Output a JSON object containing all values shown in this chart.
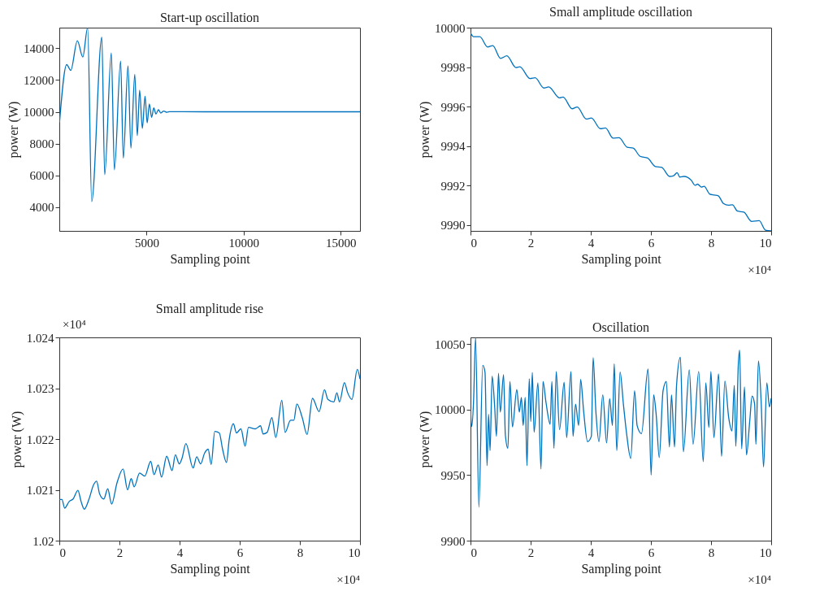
{
  "chart_data": [
    {
      "type": "line",
      "title": "Start-up oscillation",
      "xlabel": "Sampling point",
      "ylabel": "power (W)",
      "xlim": [
        500,
        16000
      ],
      "ylim": [
        2500,
        15300
      ],
      "xticks": [
        5000,
        10000,
        15000
      ],
      "yticks": [
        4000,
        6000,
        8000,
        10000,
        12000,
        14000
      ],
      "marker": "none",
      "line_style": "solid",
      "series": [
        {
          "color": "#0072bd",
          "x": [
            510,
            880,
            1090,
            1430,
            1710,
            1960,
            2170,
            2690,
            2840,
            3180,
            3340,
            3660,
            3800,
            4040,
            4190,
            4390,
            4520,
            4640,
            4780,
            4920,
            5030,
            5140,
            5260,
            5370,
            5480,
            5610,
            5730,
            5880,
            6050,
            6180,
            8000,
            10000,
            12000,
            14000,
            16000
          ],
          "values": [
            9330,
            12970,
            12610,
            14470,
            13450,
            15300,
            4350,
            14700,
            6040,
            13700,
            6350,
            13190,
            7080,
            12900,
            7710,
            12360,
            8500,
            11360,
            8960,
            10980,
            9300,
            10490,
            9650,
            10250,
            9860,
            10130,
            9920,
            10050,
            9970,
            10010,
            10000,
            10000,
            10000,
            10000,
            10000
          ]
        }
      ]
    },
    {
      "type": "line",
      "title": "Small amplitude oscillation",
      "xlabel": "Sampling point",
      "ylabel": "power (W)",
      "xlim": [
        0,
        10
      ],
      "ylim": [
        9989.7,
        10000
      ],
      "xticks": [
        0,
        2,
        4,
        6,
        8,
        10
      ],
      "yticks": [
        9990,
        9992,
        9994,
        9996,
        9998,
        10000
      ],
      "marker": "none",
      "line_style": "solid",
      "annotations": [
        "×10⁴"
      ],
      "series": [
        {
          "color": "#0072bd",
          "x": [
            0,
            0.1,
            0.31,
            0.57,
            0.74,
            1.0,
            1.21,
            1.51,
            1.64,
            1.98,
            2.15,
            2.44,
            2.6,
            2.96,
            3.08,
            3.38,
            3.55,
            3.85,
            4.02,
            4.32,
            4.49,
            4.74,
            4.94,
            5.21,
            5.41,
            5.64,
            5.89,
            6.15,
            6.36,
            6.62,
            6.76,
            6.87,
            6.96,
            7.1,
            7.34,
            7.47,
            7.55,
            7.68,
            7.77,
            7.96,
            8.11,
            8.24,
            8.41,
            8.58,
            8.71,
            8.88,
            9.09,
            9.35,
            9.6,
            9.81,
            10
          ],
          "values": [
            9999.74,
            9999.54,
            9999.54,
            9999.02,
            9999.09,
            9998.44,
            9998.57,
            9997.98,
            9998.02,
            9997.42,
            9997.46,
            9996.94,
            9997.0,
            9996.44,
            9996.48,
            9995.89,
            9995.98,
            9995.37,
            9995.42,
            9994.88,
            9994.92,
            9994.4,
            9994.42,
            9993.94,
            9993.9,
            9993.48,
            9993.39,
            9992.96,
            9992.92,
            9992.46,
            9992.5,
            9992.65,
            9992.43,
            9992.46,
            9992.27,
            9992.01,
            9992.07,
            9991.92,
            9991.96,
            9991.56,
            9991.52,
            9991.48,
            9991.09,
            9991.0,
            9991.02,
            9990.7,
            9990.65,
            9990.18,
            9990.22,
            9989.74,
            9989.7
          ]
        }
      ]
    },
    {
      "type": "line",
      "title": "Small amplitude rise",
      "xlabel": "Sampling point",
      "ylabel": "power (W)",
      "xlim": [
        0,
        10
      ],
      "ylim": [
        1.02,
        1.024
      ],
      "xticks": [
        0,
        2,
        4,
        6,
        8,
        10
      ],
      "yticks": [
        1.02,
        1.021,
        1.022,
        1.023,
        1.024
      ],
      "marker": "none",
      "line_style": "solid",
      "annotations": [
        "×10⁴",
        "×10⁴"
      ],
      "series": [
        {
          "color": "#0072bd",
          "x": [
            0,
            0.088,
            0.177,
            0.327,
            0.459,
            0.618,
            0.724,
            0.83,
            0.989,
            1.14,
            1.24,
            1.34,
            1.48,
            1.61,
            1.74,
            1.92,
            2.12,
            2.27,
            2.39,
            2.49,
            2.67,
            2.84,
            3.04,
            3.15,
            3.29,
            3.4,
            3.57,
            3.75,
            3.86,
            3.99,
            4.08,
            4.21,
            4.45,
            4.57,
            4.7,
            4.83,
            4.95,
            5.05,
            5.17,
            5.32,
            5.43,
            5.56,
            5.65,
            5.79,
            5.89,
            6.04,
            6.18,
            6.29,
            6.52,
            6.69,
            6.78,
            6.91,
            7.07,
            7.2,
            7.4,
            7.51,
            7.69,
            7.8,
            7.9,
            8.08,
            8.24,
            8.42,
            8.64,
            8.82,
            8.93,
            9.13,
            9.23,
            9.32,
            9.48,
            9.59,
            9.73,
            9.91,
            10
          ],
          "values": [
            1.02081,
            1.02081,
            1.02064,
            1.02077,
            1.02082,
            1.02099,
            1.02077,
            1.02062,
            1.02082,
            1.0211,
            1.02117,
            1.02092,
            1.02082,
            1.02102,
            1.02072,
            1.02114,
            1.02141,
            1.021,
            1.02122,
            1.02106,
            1.02133,
            1.02127,
            1.02156,
            1.0213,
            1.02149,
            1.02125,
            1.02166,
            1.02138,
            1.02169,
            1.02151,
            1.02162,
            1.02191,
            1.02143,
            1.02165,
            1.02151,
            1.02172,
            1.0218,
            1.0215,
            1.02215,
            1.02212,
            1.0218,
            1.02154,
            1.02199,
            1.0223,
            1.02212,
            1.0222,
            1.02186,
            1.02223,
            1.0222,
            1.02226,
            1.0221,
            1.02213,
            1.02242,
            1.02203,
            1.02276,
            1.02213,
            1.02237,
            1.02237,
            1.02269,
            1.02242,
            1.02209,
            1.0228,
            1.02254,
            1.02297,
            1.02278,
            1.02273,
            1.02291,
            1.02273,
            1.02311,
            1.02291,
            1.02278,
            1.02337,
            1.02318
          ]
        }
      ]
    },
    {
      "type": "line",
      "title": "Oscillation",
      "xlabel": "Sampling point",
      "ylabel": "power (W)",
      "xlim": [
        0,
        10
      ],
      "ylim": [
        9900,
        10055
      ],
      "xticks": [
        0,
        2,
        4,
        6,
        8,
        10
      ],
      "yticks": [
        9900,
        9950,
        10000,
        10050
      ],
      "marker": "none",
      "line_style": "solid",
      "annotations": [
        "×10⁴"
      ],
      "series": [
        {
          "color": "#0072bd",
          "x": [
            0,
            0.042,
            0.102,
            0.169,
            0.279,
            0.406,
            0.482,
            0.55,
            0.601,
            0.651,
            0.719,
            0.804,
            0.863,
            0.931,
            0.99,
            1.1,
            1.159,
            1.244,
            1.311,
            1.396,
            1.54,
            1.624,
            1.692,
            1.751,
            1.819,
            1.878,
            1.954,
            2.005,
            2.056,
            2.115,
            2.242,
            2.344,
            2.411,
            2.513,
            2.648,
            2.707,
            2.775,
            2.851,
            2.961,
            3.114,
            3.198,
            3.342,
            3.41,
            3.494,
            3.596,
            3.663,
            3.765,
            3.892,
            4.019,
            4.078,
            4.171,
            4.272,
            4.399,
            4.526,
            4.628,
            4.721,
            4.78,
            4.865,
            4.975,
            5.085,
            5.186,
            5.33,
            5.457,
            5.541,
            5.685,
            5.905,
            6.007,
            6.091,
            6.176,
            6.277,
            6.404,
            6.514,
            6.616,
            6.684,
            6.785,
            6.853,
            6.98,
            7.081,
            7.276,
            7.403,
            7.589,
            7.741,
            7.826,
            7.927,
            7.995,
            8.096,
            8.249,
            8.35,
            8.46,
            8.587,
            8.697,
            8.773,
            8.824,
            8.908,
            8.951,
            9.019,
            9.112,
            9.179,
            9.289,
            9.365,
            9.45,
            9.492,
            9.577,
            9.67,
            9.746,
            9.856,
            9.941,
            10
          ],
          "values": [
            10000.4,
            9987.1,
            10006.5,
            10055,
            9925.5,
            10033.7,
            10028.6,
            9957.2,
            9996.3,
            9968.7,
            10025.5,
            10002.0,
            9979.6,
            10027.6,
            9998.0,
            10026.5,
            9980.6,
            9970.4,
            10021.4,
            9986.7,
            10015.3,
            9998.0,
            10009.2,
            9987.8,
            10009.2,
            9957.2,
            10023.5,
            9990.8,
            10028.2,
            9982.7,
            10020.4,
            9954.7,
            10021.4,
            10005.1,
            9988.8,
            10021.4,
            9970.4,
            10029.0,
            9984.7,
            10020.8,
            9978.6,
            10029.0,
            9979.6,
            10004.1,
            9987.8,
            10022.9,
            9998.0,
            9975.5,
            9979.6,
            10039.6,
            9998.0,
            9975.5,
            10011.2,
            9974.5,
            10008.2,
            9987.8,
            10034.9,
            9968.6,
            10028.6,
            10004.1,
            9982.7,
            9962.7,
            10014.3,
            9987.8,
            9981.6,
            10031.0,
            9950.0,
            10011.2,
            9995.9,
            9963.3,
            10014.3,
            10021.4,
            9971.4,
            10011.2,
            9971.4,
            10018.4,
            10039.8,
            9967.8,
            10030.2,
            9973.5,
            10029.0,
            9960.2,
            10020.4,
            9986.3,
            10029.0,
            9978.6,
            10027.1,
            9964.3,
            10021.8,
            9993.9,
            9983.7,
            10018.4,
            9972.0,
            10034.9,
            10045.3,
            9970.0,
            10017.3,
            9965.3,
            9991.8,
            10010.2,
            10004.1,
            9973.5,
            10037.1,
            10004.1,
            9956.1,
            10020.4,
            10002.0,
            10008.6
          ]
        }
      ]
    }
  ]
}
